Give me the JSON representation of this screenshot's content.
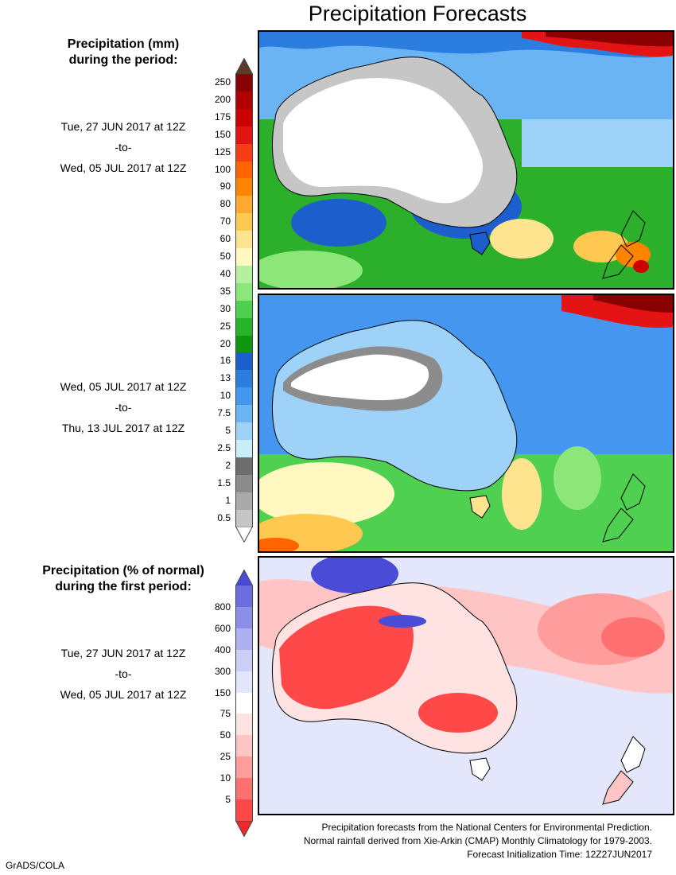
{
  "title": "Precipitation Forecasts",
  "legend1": {
    "heading_line1": "Precipitation (mm)",
    "heading_line2": "during the period:",
    "labels": [
      "250",
      "200",
      "175",
      "150",
      "125",
      "100",
      "90",
      "80",
      "70",
      "60",
      "50",
      "40",
      "35",
      "30",
      "25",
      "20",
      "16",
      "13",
      "10",
      "7.5",
      "5",
      "2.5",
      "2",
      "1.5",
      "1",
      "0.5"
    ],
    "colors": [
      "#8a0000",
      "#b00000",
      "#cc0000",
      "#e41414",
      "#f53c14",
      "#ff6400",
      "#ff8400",
      "#ffa830",
      "#ffc850",
      "#ffe490",
      "#fff8c0",
      "#b4f0a0",
      "#8ce67a",
      "#50d050",
      "#28b428",
      "#109610",
      "#1c5fcc",
      "#2c7de0",
      "#4496ee",
      "#6ab4f4",
      "#9ed2f8",
      "#c8eefc",
      "#6e6e6e",
      "#8c8c8c",
      "#aaaaaa",
      "#c6c6c6"
    ],
    "top_color": "#5a3a2a",
    "bottom_color": "#ffffff"
  },
  "legend2": {
    "heading_line1": "Precipitation (% of normal)",
    "heading_line2": "during the first period:",
    "labels": [
      "800",
      "600",
      "400",
      "300",
      "150",
      "75",
      "50",
      "25",
      "10",
      "5"
    ],
    "colors": [
      "#6c6ee0",
      "#8c8ee8",
      "#aeb0f0",
      "#cccef6",
      "#e4e6fb",
      "#ffffff",
      "#ffe2e2",
      "#ffc4c4",
      "#ff9c9c",
      "#ff7070",
      "#ff4848"
    ],
    "top_color": "#4a4cd8",
    "bottom_color": "#f02828"
  },
  "periods": [
    {
      "start": "Tue, 27 JUN 2017 at 12Z",
      "sep": "-to-",
      "end": "Wed, 05 JUL 2017 at 12Z"
    },
    {
      "start": "Wed, 05 JUL 2017 at 12Z",
      "sep": "-to-",
      "end": "Thu, 13 JUL 2017 at 12Z"
    },
    {
      "start": "Tue, 27 JUN 2017 at 12Z",
      "sep": "-to-",
      "end": "Wed, 05 JUL 2017 at 12Z"
    }
  ],
  "footer": {
    "line1": "Precipitation forecasts from the National Centers for Environmental Prediction.",
    "line2": "Normal rainfall derived from Xie-Arkin (CMAP) Monthly Climatology for 1979-2003.",
    "line3": "Forecast Initialization Time: 12Z27JUN2017"
  },
  "credit": "GrADS/COLA"
}
